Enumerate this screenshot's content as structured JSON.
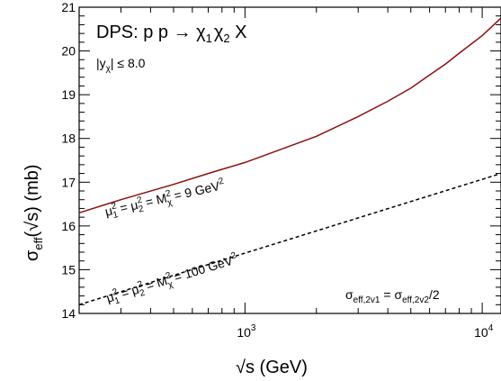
{
  "chart_data": {
    "type": "line",
    "title": "DPS:  p p → χ",
    "title_parts": [
      "1",
      "χ",
      "2",
      " X"
    ],
    "cut_label": "|y",
    "cut_sub": "χ",
    "cut_rest": "| ≤ 8.0",
    "xlabel": "√s    (GeV)",
    "ylabel_main": "σ",
    "ylabel_sub": "eff",
    "ylabel_rest": "(√s)    (mb)",
    "x_scale": "log",
    "xlim": [
      200,
      12000
    ],
    "ylim": [
      14,
      21
    ],
    "x_ticks": [
      {
        "value": 1000,
        "base": "10",
        "exp": "3"
      },
      {
        "value": 10000,
        "base": "10",
        "exp": "4"
      }
    ],
    "y_ticks": [
      14,
      15,
      16,
      17,
      18,
      19,
      20,
      21
    ],
    "series": [
      {
        "label_text": "μ₁² = μ₂² = Mχ² = 9 GeV²",
        "color": "#8b1010",
        "dash": "none",
        "x": [
          200,
          300,
          500,
          700,
          1000,
          1500,
          2000,
          3000,
          4000,
          5000,
          6000,
          7000,
          8000,
          10000,
          12000
        ],
        "y": [
          16.3,
          16.6,
          16.95,
          17.2,
          17.45,
          17.8,
          18.05,
          18.5,
          18.85,
          19.15,
          19.45,
          19.7,
          19.95,
          20.35,
          20.75
        ]
      },
      {
        "label_text": "μ₁² = μ₂² = Mχ² = 100 GeV²",
        "color": "#000000",
        "dash": "4 3",
        "x": [
          200,
          12000
        ],
        "y": [
          14.2,
          17.2
        ]
      }
    ],
    "annotation": "σeff,2v1 = σeff,2v2/2",
    "grid": false
  },
  "texts": {
    "sub1": "1",
    "sub2": "2",
    "sup2": "2",
    "chi": "χ",
    "mu": "μ",
    "M": "M",
    "eq": " = ",
    "label1_value": " = 9 GeV",
    "label2_value": " = 100 GeV",
    "ann_sigma": "σ",
    "ann_sub1": "eff,2v1",
    "ann_mid": " = σ",
    "ann_sub2": "eff,2v2",
    "ann_end": "/2"
  }
}
